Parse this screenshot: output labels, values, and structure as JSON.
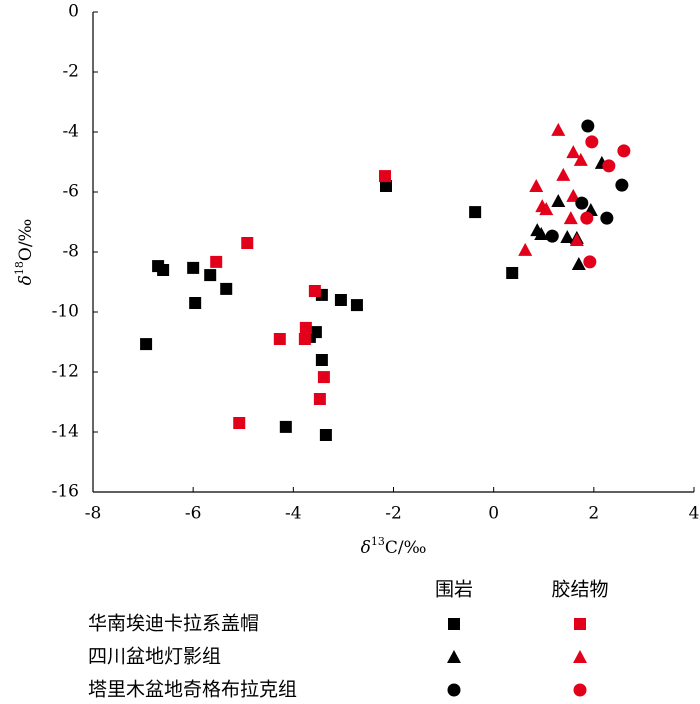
{
  "chart_data": {
    "type": "scatter",
    "xlabel": [
      "δ",
      "13",
      "C/‰"
    ],
    "ylabel": [
      "δ",
      "18",
      "O/‰"
    ],
    "xlim": [
      -8,
      4
    ],
    "xticks": [
      -8,
      -6,
      -4,
      -2,
      0,
      2,
      4
    ],
    "ylim": [
      -16,
      0
    ],
    "yticks": [
      0,
      -2,
      -4,
      -6,
      -8,
      -10,
      -12,
      -14,
      -16
    ],
    "series": [
      {
        "region": "华南埃迪卡拉系盖帽",
        "rock": "围岩",
        "marker": "square",
        "color": "#000000",
        "x": [
          -6.7,
          -6.6,
          -6.0,
          -5.96,
          -5.66,
          -5.34,
          -6.94,
          -3.43,
          -3.05,
          -2.73,
          -3.55,
          -3.67,
          -3.43,
          -4.15,
          -3.35,
          -2.15,
          -0.37,
          0.37
        ],
        "y": [
          -8.47,
          -8.6,
          -8.53,
          -9.7,
          -8.77,
          -9.23,
          -11.07,
          -9.43,
          -9.6,
          -9.77,
          -10.67,
          -10.83,
          -11.6,
          -13.83,
          -14.1,
          -5.8,
          -6.67,
          -8.7
        ]
      },
      {
        "region": "华南埃迪卡拉系盖帽",
        "rock": "胶结物",
        "marker": "square",
        "color": "#e3001b",
        "x": [
          -2.17,
          -4.92,
          -5.54,
          -3.57,
          -3.75,
          -3.77,
          -4.27,
          -3.39,
          -3.47,
          -5.08
        ],
        "y": [
          -5.47,
          -7.7,
          -8.33,
          -9.3,
          -10.53,
          -10.9,
          -10.9,
          -12.17,
          -12.9,
          -13.7
        ]
      },
      {
        "region": "四川盆地灯影组",
        "rock": "围岩",
        "marker": "triangle",
        "color": "#000000",
        "x": [
          0.87,
          0.95,
          1.29,
          1.47,
          1.66,
          1.7,
          1.94,
          2.16
        ],
        "y": [
          -7.27,
          -7.4,
          -6.3,
          -7.5,
          -7.53,
          -8.4,
          -6.6,
          -5.03
        ]
      },
      {
        "region": "四川盆地灯影组",
        "rock": "胶结物",
        "marker": "triangle",
        "color": "#e3001b",
        "x": [
          1.29,
          1.59,
          1.74,
          1.39,
          0.85,
          1.59,
          0.97,
          1.05,
          1.54,
          1.66,
          0.63
        ],
        "y": [
          -3.93,
          -4.67,
          -4.93,
          -5.43,
          -5.8,
          -6.13,
          -6.47,
          -6.57,
          -6.87,
          -7.6,
          -7.93
        ]
      },
      {
        "region": "塔里木盆地奇格布拉克组",
        "rock": "围岩",
        "marker": "circle",
        "color": "#000000",
        "x": [
          1.88,
          2.56,
          1.76,
          2.26,
          1.17
        ],
        "y": [
          -3.8,
          -5.77,
          -6.37,
          -6.87,
          -7.47
        ]
      },
      {
        "region": "塔里木盆地奇格布拉克组",
        "rock": "胶结物",
        "marker": "circle",
        "color": "#e3001b",
        "x": [
          1.96,
          2.6,
          2.3,
          1.86,
          1.92
        ],
        "y": [
          -4.33,
          -4.63,
          -5.13,
          -6.87,
          -8.33
        ]
      }
    ]
  }
}
